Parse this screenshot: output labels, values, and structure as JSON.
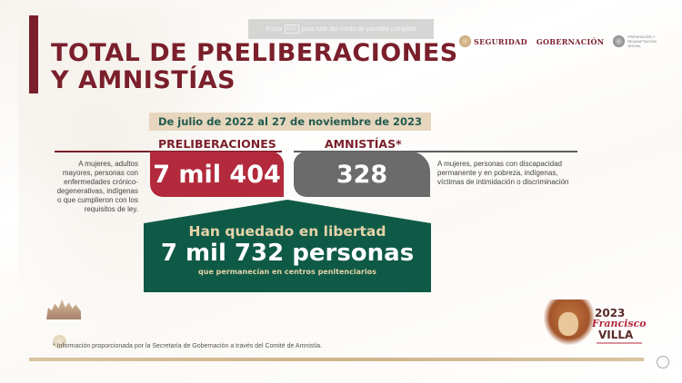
{
  "fullscreen_notice": {
    "prefix": "Pulsa",
    "key": "Esc",
    "suffix": "para salir del modo de pantalla completa"
  },
  "header": {
    "title_line1": "TOTAL DE PRELIBERACIONES",
    "title_line2": "Y AMNISTÍAS",
    "logos": [
      {
        "name": "SEGURIDAD"
      },
      {
        "name": "GOBERNACIÓN"
      },
      {
        "name": "PREVENCIÓN Y READAPTACIÓN SOCIAL"
      }
    ]
  },
  "date_range": "De julio de 2022 al 27 de noviembre de 2023",
  "preliberaciones": {
    "label": "PRELIBERACIONES",
    "value": "7 mil 404",
    "description": "A mujeres, adultos mayores, personas con enfermedades crónico-degenerativas, indígenas o que cumplieron con los requisitos de ley.",
    "color": "#b22a3c"
  },
  "amnistias": {
    "label": "AMNISTÍAS*",
    "value": "328",
    "description": "A mujeres, personas con discapacidad permanente y en pobreza, indígenas, víctimas de intimidación o discriminación",
    "color": "#6b6b6b"
  },
  "total": {
    "line1": "Han quedado en libertad",
    "line2": "7 mil 732 personas",
    "line3": "que permanecían en centros penitenciarios",
    "color": "#0f5a46"
  },
  "footnote": "* Información proporcionada por la Secretaría de Gobernación a través del Comité de Amnistía.",
  "francisco_villa_logo": {
    "year": "2023",
    "name": "Francisco",
    "surname": "VILLA"
  }
}
